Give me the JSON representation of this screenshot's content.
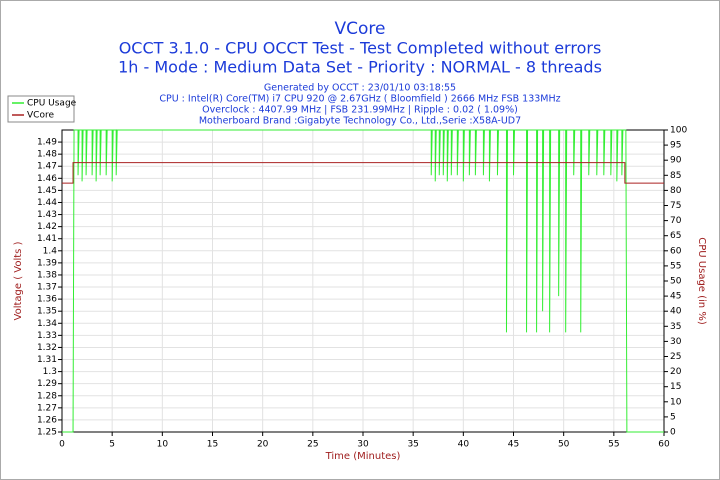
{
  "chart_data": {
    "type": "line",
    "title": "VCore",
    "subtitles": [
      "OCCT 3.1.0 - CPU OCCT Test - Test Completed without errors",
      "1h - Mode : Medium Data Set - Priority : NORMAL - 8 threads"
    ],
    "info": [
      "Generated by OCCT : 23/01/10 03:18:55",
      "CPU : Intel(R) Core(TM) i7 CPU 920 @ 2.67GHz ( Bloomfield ) 2666 MHz FSB 133MHz",
      "Overclock : 4407.99 MHz | FSB 231.99MHz | Ripple : 0.02 ( 1.09%)",
      "Motherboard Brand :Gigabyte Technology Co., Ltd.,Serie :X58A-UD7"
    ],
    "xlabel": "Time (Minutes)",
    "ylabel": "Voltage ( Volts )",
    "y2label": "CPU Usage (in %)",
    "xlim": [
      0,
      60
    ],
    "xticks": [
      0,
      5,
      10,
      15,
      20,
      25,
      30,
      35,
      40,
      45,
      50,
      55,
      60
    ],
    "ylim": [
      1.25,
      1.5
    ],
    "yticks": [
      1.25,
      1.26,
      1.27,
      1.28,
      1.29,
      1.3,
      1.31,
      1.32,
      1.33,
      1.34,
      1.35,
      1.36,
      1.37,
      1.38,
      1.39,
      1.4,
      1.41,
      1.42,
      1.43,
      1.44,
      1.45,
      1.46,
      1.47,
      1.48,
      1.49
    ],
    "y2lim": [
      0,
      100
    ],
    "y2ticks": [
      0,
      5,
      10,
      15,
      20,
      25,
      30,
      35,
      40,
      45,
      50,
      55,
      60,
      65,
      70,
      75,
      80,
      85,
      90,
      95,
      100
    ],
    "grid": true,
    "legend": "top-left",
    "series": [
      {
        "name": "CPU Usage",
        "color": "#33ee33",
        "axis": "y2",
        "x": [
          0,
          1.1,
          1.2,
          1.6,
          1.6,
          1.7,
          2.0,
          2.0,
          2.1,
          2.4,
          2.4,
          2.5,
          3.0,
          3.0,
          3.1,
          3.4,
          3.4,
          3.5,
          3.8,
          3.8,
          3.9,
          4.4,
          4.4,
          4.5,
          5.0,
          5.0,
          5.1,
          5.4,
          5.4,
          5.5,
          36.8,
          36.8,
          36.9,
          37.2,
          37.2,
          37.3,
          37.6,
          37.6,
          37.7,
          38.0,
          38.0,
          38.1,
          38.4,
          38.4,
          38.5,
          38.8,
          38.8,
          38.9,
          39.4,
          39.4,
          39.5,
          40.0,
          40.0,
          40.1,
          40.6,
          40.6,
          40.7,
          41.2,
          41.2,
          41.3,
          42.0,
          42.0,
          42.1,
          42.6,
          42.6,
          42.7,
          43.4,
          43.4,
          43.5,
          44.3,
          44.3,
          44.4,
          45.0,
          45.0,
          45.1,
          46.3,
          46.3,
          46.4,
          47.3,
          47.3,
          47.4,
          47.9,
          47.9,
          48.0,
          48.6,
          48.6,
          48.7,
          49.5,
          49.5,
          49.6,
          50.2,
          50.2,
          50.3,
          51.0,
          51.0,
          51.1,
          51.7,
          51.7,
          51.8,
          52.5,
          52.5,
          52.6,
          53.3,
          53.3,
          53.4,
          54.0,
          54.0,
          54.1,
          54.7,
          54.7,
          54.8,
          55.3,
          55.3,
          55.4,
          55.8,
          55.8,
          55.9,
          56.2,
          56.3,
          60
        ],
        "values": [
          0,
          0,
          100,
          100,
          85,
          100,
          100,
          83,
          100,
          100,
          85,
          100,
          100,
          85,
          100,
          100,
          83,
          100,
          100,
          85,
          100,
          100,
          85,
          100,
          100,
          83,
          100,
          100,
          85,
          100,
          100,
          85,
          100,
          100,
          83,
          100,
          100,
          85,
          100,
          100,
          85,
          100,
          100,
          83,
          100,
          100,
          85,
          100,
          100,
          85,
          100,
          100,
          83,
          100,
          100,
          85,
          100,
          100,
          85,
          100,
          100,
          85,
          100,
          100,
          83,
          100,
          100,
          85,
          100,
          100,
          33,
          100,
          100,
          85,
          100,
          100,
          33,
          100,
          100,
          33,
          100,
          100,
          40,
          100,
          100,
          33,
          100,
          100,
          45,
          100,
          100,
          33,
          100,
          100,
          85,
          100,
          100,
          33,
          100,
          100,
          85,
          100,
          100,
          85,
          100,
          100,
          85,
          100,
          100,
          85,
          100,
          100,
          83,
          100,
          100,
          85,
          100,
          100,
          0,
          0
        ]
      },
      {
        "name": "VCore",
        "color": "#aa2222",
        "x": [
          0,
          1.1,
          1.1,
          56.1,
          56.1,
          60
        ],
        "values": [
          1.456,
          1.456,
          1.473,
          1.473,
          1.456,
          1.456
        ]
      }
    ]
  }
}
